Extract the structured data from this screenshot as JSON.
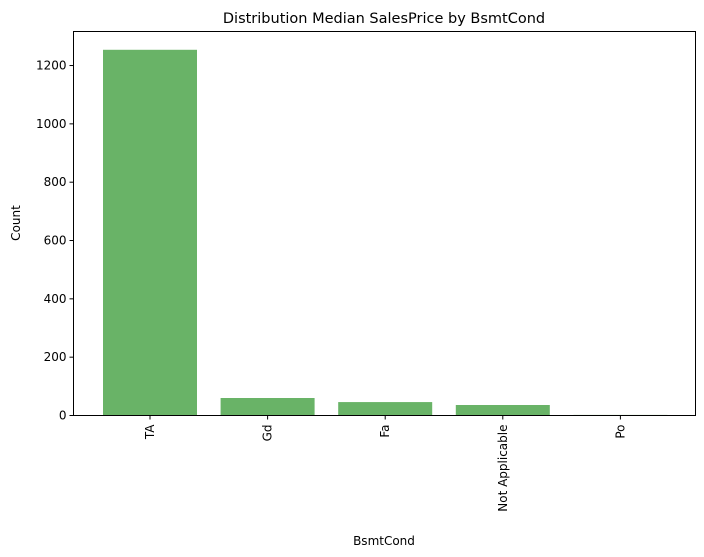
{
  "chart_data": {
    "type": "bar",
    "title": "Distribution Median SalesPrice by BsmtCond",
    "xlabel": "BsmtCond",
    "ylabel": "Count",
    "categories": [
      "TA",
      "Gd",
      "Fa",
      "Not Applicable",
      "Po"
    ],
    "values": [
      1254,
      60,
      46,
      36,
      2
    ],
    "yticks": [
      0,
      200,
      400,
      600,
      800,
      1000,
      1200
    ],
    "ylim": [
      0,
      1316.7
    ],
    "grid": false,
    "legend": "none",
    "bar_color": "#69b367",
    "bar_opacity": 1
  }
}
